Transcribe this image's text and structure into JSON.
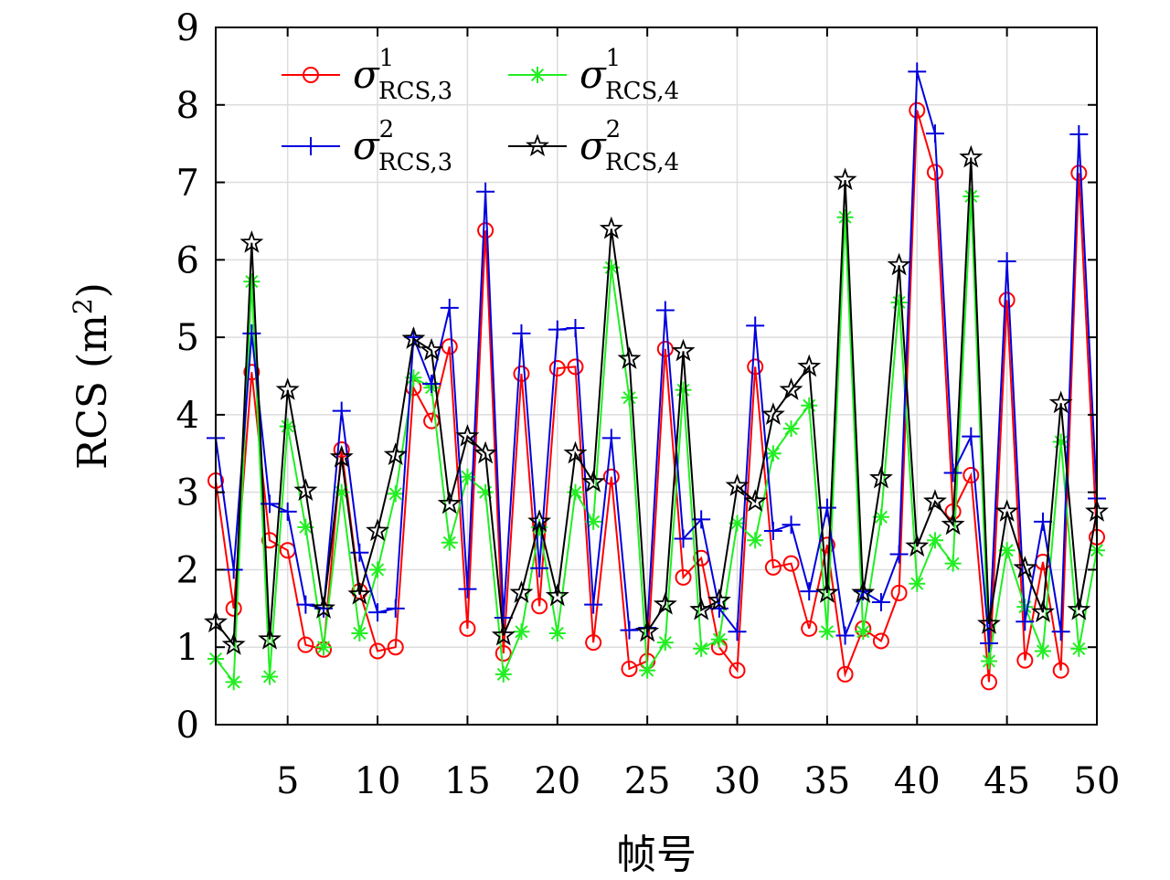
{
  "chart_data": {
    "type": "line",
    "xlabel": "帧号",
    "ylabel": "RCS (m",
    "ylabel_sup": "2",
    "ylabel_close": ")",
    "xlim": [
      1,
      50
    ],
    "ylim": [
      0,
      9
    ],
    "xticks": [
      5,
      10,
      15,
      20,
      25,
      30,
      35,
      40,
      45,
      50
    ],
    "yticks": [
      0,
      1,
      2,
      3,
      4,
      5,
      6,
      7,
      8,
      9
    ],
    "grid": true,
    "legend_position": "top-left",
    "x": [
      1,
      2,
      3,
      4,
      5,
      6,
      7,
      8,
      9,
      10,
      11,
      12,
      13,
      14,
      15,
      16,
      17,
      18,
      19,
      20,
      21,
      22,
      23,
      24,
      25,
      26,
      27,
      28,
      29,
      30,
      31,
      32,
      33,
      34,
      35,
      36,
      37,
      38,
      39,
      40,
      41,
      42,
      43,
      44,
      45,
      46,
      47,
      48,
      49,
      50
    ],
    "series": [
      {
        "name": "σ",
        "sup": "1",
        "sub": "RCS,3",
        "color": "#ff0000",
        "marker": "circle",
        "values": [
          3.15,
          1.5,
          4.55,
          2.38,
          2.25,
          1.03,
          0.97,
          3.55,
          1.72,
          0.95,
          1.0,
          4.35,
          3.92,
          4.88,
          1.24,
          6.38,
          0.92,
          4.53,
          1.53,
          4.6,
          4.62,
          1.06,
          3.2,
          0.72,
          0.82,
          4.85,
          1.9,
          2.15,
          1.0,
          0.7,
          4.62,
          2.03,
          2.08,
          1.24,
          2.32,
          0.65,
          1.24,
          1.08,
          1.7,
          7.93,
          7.13,
          2.75,
          3.22,
          0.55,
          5.48,
          0.83,
          2.1,
          0.7,
          7.12,
          2.42
        ]
      },
      {
        "name": "σ",
        "sup": "1",
        "sub": "RCS,4",
        "color": "#22ee22",
        "marker": "asterisk",
        "values": [
          0.85,
          0.55,
          5.72,
          0.62,
          3.85,
          2.55,
          1.0,
          3.0,
          1.18,
          2.0,
          2.98,
          4.48,
          4.35,
          2.35,
          3.2,
          3.0,
          0.65,
          1.2,
          2.55,
          1.18,
          3.0,
          2.62,
          5.9,
          4.22,
          0.7,
          1.06,
          4.32,
          0.98,
          1.1,
          2.6,
          2.38,
          3.5,
          3.82,
          4.12,
          1.2,
          6.55,
          1.2,
          2.68,
          5.45,
          1.82,
          2.38,
          2.08,
          6.82,
          0.82,
          2.25,
          1.52,
          0.95,
          3.65,
          0.98,
          2.25
        ]
      },
      {
        "name": "σ",
        "sup": "2",
        "sub": "RCS,3",
        "color": "#0000dd",
        "marker": "plus",
        "values": [
          3.7,
          2.0,
          5.05,
          2.85,
          2.75,
          1.55,
          1.5,
          4.05,
          2.22,
          1.45,
          1.5,
          5.0,
          4.4,
          5.38,
          1.75,
          6.88,
          1.38,
          5.05,
          2.02,
          5.1,
          5.12,
          1.55,
          3.7,
          1.22,
          1.25,
          5.35,
          2.4,
          2.65,
          1.5,
          1.2,
          5.15,
          2.5,
          2.58,
          1.72,
          2.8,
          1.15,
          1.72,
          1.58,
          2.2,
          8.43,
          7.63,
          3.25,
          3.72,
          1.05,
          5.98,
          1.33,
          2.62,
          1.2,
          7.62,
          2.92
        ]
      },
      {
        "name": "σ",
        "sup": "2",
        "sub": "RCS,4",
        "color": "#000000",
        "marker": "star",
        "values": [
          1.32,
          1.03,
          6.22,
          1.1,
          4.32,
          3.02,
          1.5,
          3.45,
          1.68,
          2.5,
          3.48,
          4.98,
          4.83,
          2.85,
          3.72,
          3.5,
          1.15,
          1.7,
          2.62,
          1.66,
          3.5,
          3.13,
          6.4,
          4.72,
          1.2,
          1.55,
          4.82,
          1.48,
          1.6,
          3.08,
          2.88,
          4.0,
          4.32,
          4.62,
          1.7,
          7.03,
          1.7,
          3.18,
          5.93,
          2.3,
          2.88,
          2.58,
          7.32,
          1.3,
          2.75,
          2.02,
          1.45,
          4.15,
          1.48,
          2.75
        ]
      }
    ]
  }
}
